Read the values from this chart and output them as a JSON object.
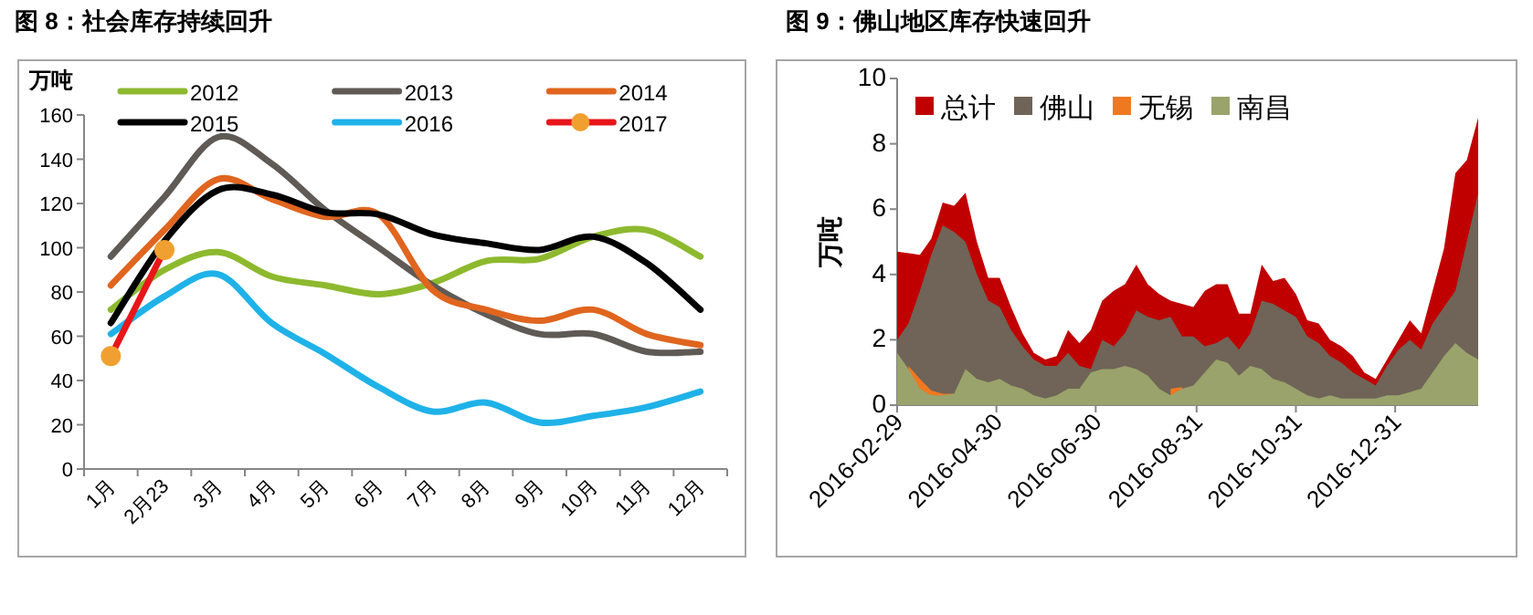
{
  "chart_data": [
    {
      "type": "line",
      "title": "图 8：社会库存持续回升",
      "ylabel": "万吨",
      "categories": [
        "1月",
        "2月23",
        "3月",
        "4月",
        "5月",
        "6月",
        "7月",
        "8月",
        "9月",
        "10月",
        "11月",
        "12月"
      ],
      "ylim": [
        0,
        160
      ],
      "yticks": [
        0,
        20,
        40,
        60,
        80,
        100,
        120,
        140,
        160
      ],
      "grid": false,
      "legend": "top",
      "marker": "none",
      "series": [
        {
          "name": "2012",
          "color": "#8db92e",
          "values": [
            72,
            90,
            98,
            87,
            83,
            79,
            84,
            94,
            95,
            105,
            108,
            96
          ]
        },
        {
          "name": "2013",
          "color": "#5f5a55",
          "values": [
            96,
            123,
            150,
            138,
            117,
            100,
            83,
            70,
            61,
            61,
            53,
            53
          ]
        },
        {
          "name": "2014",
          "color": "#e0651f",
          "values": [
            83,
            108,
            131,
            122,
            114,
            115,
            81,
            72,
            67,
            72,
            61,
            56
          ]
        },
        {
          "name": "2015",
          "color": "#000000",
          "values": [
            66,
            103,
            126,
            124,
            116,
            115,
            106,
            102,
            99,
            105,
            93,
            72
          ]
        },
        {
          "name": "2016",
          "color": "#1fb2e8",
          "values": [
            61,
            78,
            88,
            66,
            52,
            37,
            26,
            30,
            21,
            24,
            28,
            35
          ]
        },
        {
          "name": "2017",
          "color": "#e8161b",
          "marker": "circle",
          "values": [
            51,
            99,
            null,
            null,
            null,
            null,
            null,
            null,
            null,
            null,
            null,
            null
          ]
        }
      ]
    },
    {
      "type": "area",
      "title": "图 9：佛山地区库存快速回升",
      "ylabel": "万吨",
      "x": [
        "2016-02-29",
        "2016-03-07",
        "2016-03-14",
        "2016-03-21",
        "2016-03-28",
        "2016-04-04",
        "2016-04-11",
        "2016-04-18",
        "2016-04-25",
        "2016-05-02",
        "2016-05-09",
        "2016-05-16",
        "2016-05-23",
        "2016-05-30",
        "2016-06-06",
        "2016-06-13",
        "2016-06-20",
        "2016-06-27",
        "2016-07-04",
        "2016-07-11",
        "2016-07-18",
        "2016-07-25",
        "2016-08-01",
        "2016-08-08",
        "2016-08-15",
        "2016-08-22",
        "2016-08-29",
        "2016-09-05",
        "2016-09-12",
        "2016-09-19",
        "2016-09-26",
        "2016-10-03",
        "2016-10-10",
        "2016-10-17",
        "2016-10-24",
        "2016-10-31",
        "2016-11-07",
        "2016-11-14",
        "2016-11-21",
        "2016-11-28",
        "2016-12-05",
        "2016-12-12",
        "2016-12-19",
        "2016-12-26",
        "2017-01-02",
        "2017-01-09",
        "2017-01-16",
        "2017-01-23",
        "2017-01-30",
        "2017-02-06",
        "2017-02-13",
        "2017-02-20"
      ],
      "xlim": [
        "2016-02-29",
        "2017-02-20"
      ],
      "xticks": [
        "2016-02-29",
        "2016-04-30",
        "2016-06-30",
        "2016-08-31",
        "2016-10-31",
        "2016-12-31"
      ],
      "ylim": [
        0,
        10
      ],
      "yticks": [
        0,
        2,
        4,
        6,
        8,
        10
      ],
      "grid": false,
      "legend": "top",
      "series": [
        {
          "name": "总计",
          "color": "#c00000",
          "values": [
            4.7,
            4.65,
            4.6,
            5.1,
            6.2,
            6.1,
            6.5,
            5.0,
            3.9,
            3.9,
            3.0,
            2.2,
            1.6,
            1.4,
            1.5,
            2.3,
            1.9,
            2.3,
            3.2,
            3.5,
            3.7,
            4.3,
            3.7,
            3.4,
            3.2,
            3.1,
            3.0,
            3.5,
            3.7,
            3.7,
            2.8,
            2.8,
            4.3,
            3.8,
            3.9,
            3.4,
            2.6,
            2.5,
            2.0,
            1.8,
            1.5,
            1.0,
            0.8,
            1.4,
            2.0,
            2.6,
            2.2,
            3.5,
            4.8,
            7.1,
            7.5,
            8.8
          ]
        },
        {
          "name": "佛山",
          "color": "#6f6457",
          "values": [
            2.0,
            2.5,
            3.5,
            4.6,
            5.5,
            5.3,
            5.0,
            4.0,
            3.2,
            3.0,
            2.3,
            1.8,
            1.4,
            1.2,
            1.2,
            1.6,
            1.2,
            1.1,
            2.0,
            1.8,
            2.2,
            2.9,
            2.7,
            2.6,
            2.7,
            2.1,
            2.1,
            1.8,
            1.9,
            2.1,
            1.7,
            2.2,
            3.2,
            3.1,
            2.9,
            2.7,
            2.1,
            1.9,
            1.5,
            1.3,
            1.0,
            0.8,
            0.6,
            1.2,
            1.7,
            2.0,
            1.7,
            2.5,
            3.0,
            3.5,
            5.0,
            6.5
          ]
        },
        {
          "name": "无锡",
          "color": "#f07820",
          "values": [
            null,
            1.2,
            0.8,
            0.45,
            0.35,
            0.35,
            null,
            null,
            null,
            null,
            null,
            null,
            null,
            null,
            null,
            null,
            null,
            null,
            null,
            null,
            null,
            null,
            null,
            null,
            0.5,
            0.55,
            null,
            null,
            null,
            null,
            null,
            null,
            null,
            null,
            null,
            null,
            null,
            null,
            null,
            null,
            null,
            null,
            null,
            null,
            null,
            null,
            null,
            null,
            null,
            null,
            null,
            null
          ]
        },
        {
          "name": "南昌",
          "color": "#9aa36b",
          "values": [
            1.6,
            1.1,
            0.5,
            0.3,
            0.3,
            0.35,
            1.1,
            0.8,
            0.7,
            0.8,
            0.6,
            0.5,
            0.3,
            0.2,
            0.3,
            0.5,
            0.5,
            1.0,
            1.1,
            1.1,
            1.2,
            1.1,
            0.9,
            0.5,
            0.3,
            0.5,
            0.6,
            1.0,
            1.4,
            1.3,
            0.9,
            1.2,
            1.1,
            0.8,
            0.7,
            0.5,
            0.3,
            0.2,
            0.3,
            0.2,
            0.2,
            0.2,
            0.2,
            0.3,
            0.3,
            0.4,
            0.5,
            1.0,
            1.5,
            1.9,
            1.6,
            1.4
          ]
        }
      ]
    }
  ]
}
